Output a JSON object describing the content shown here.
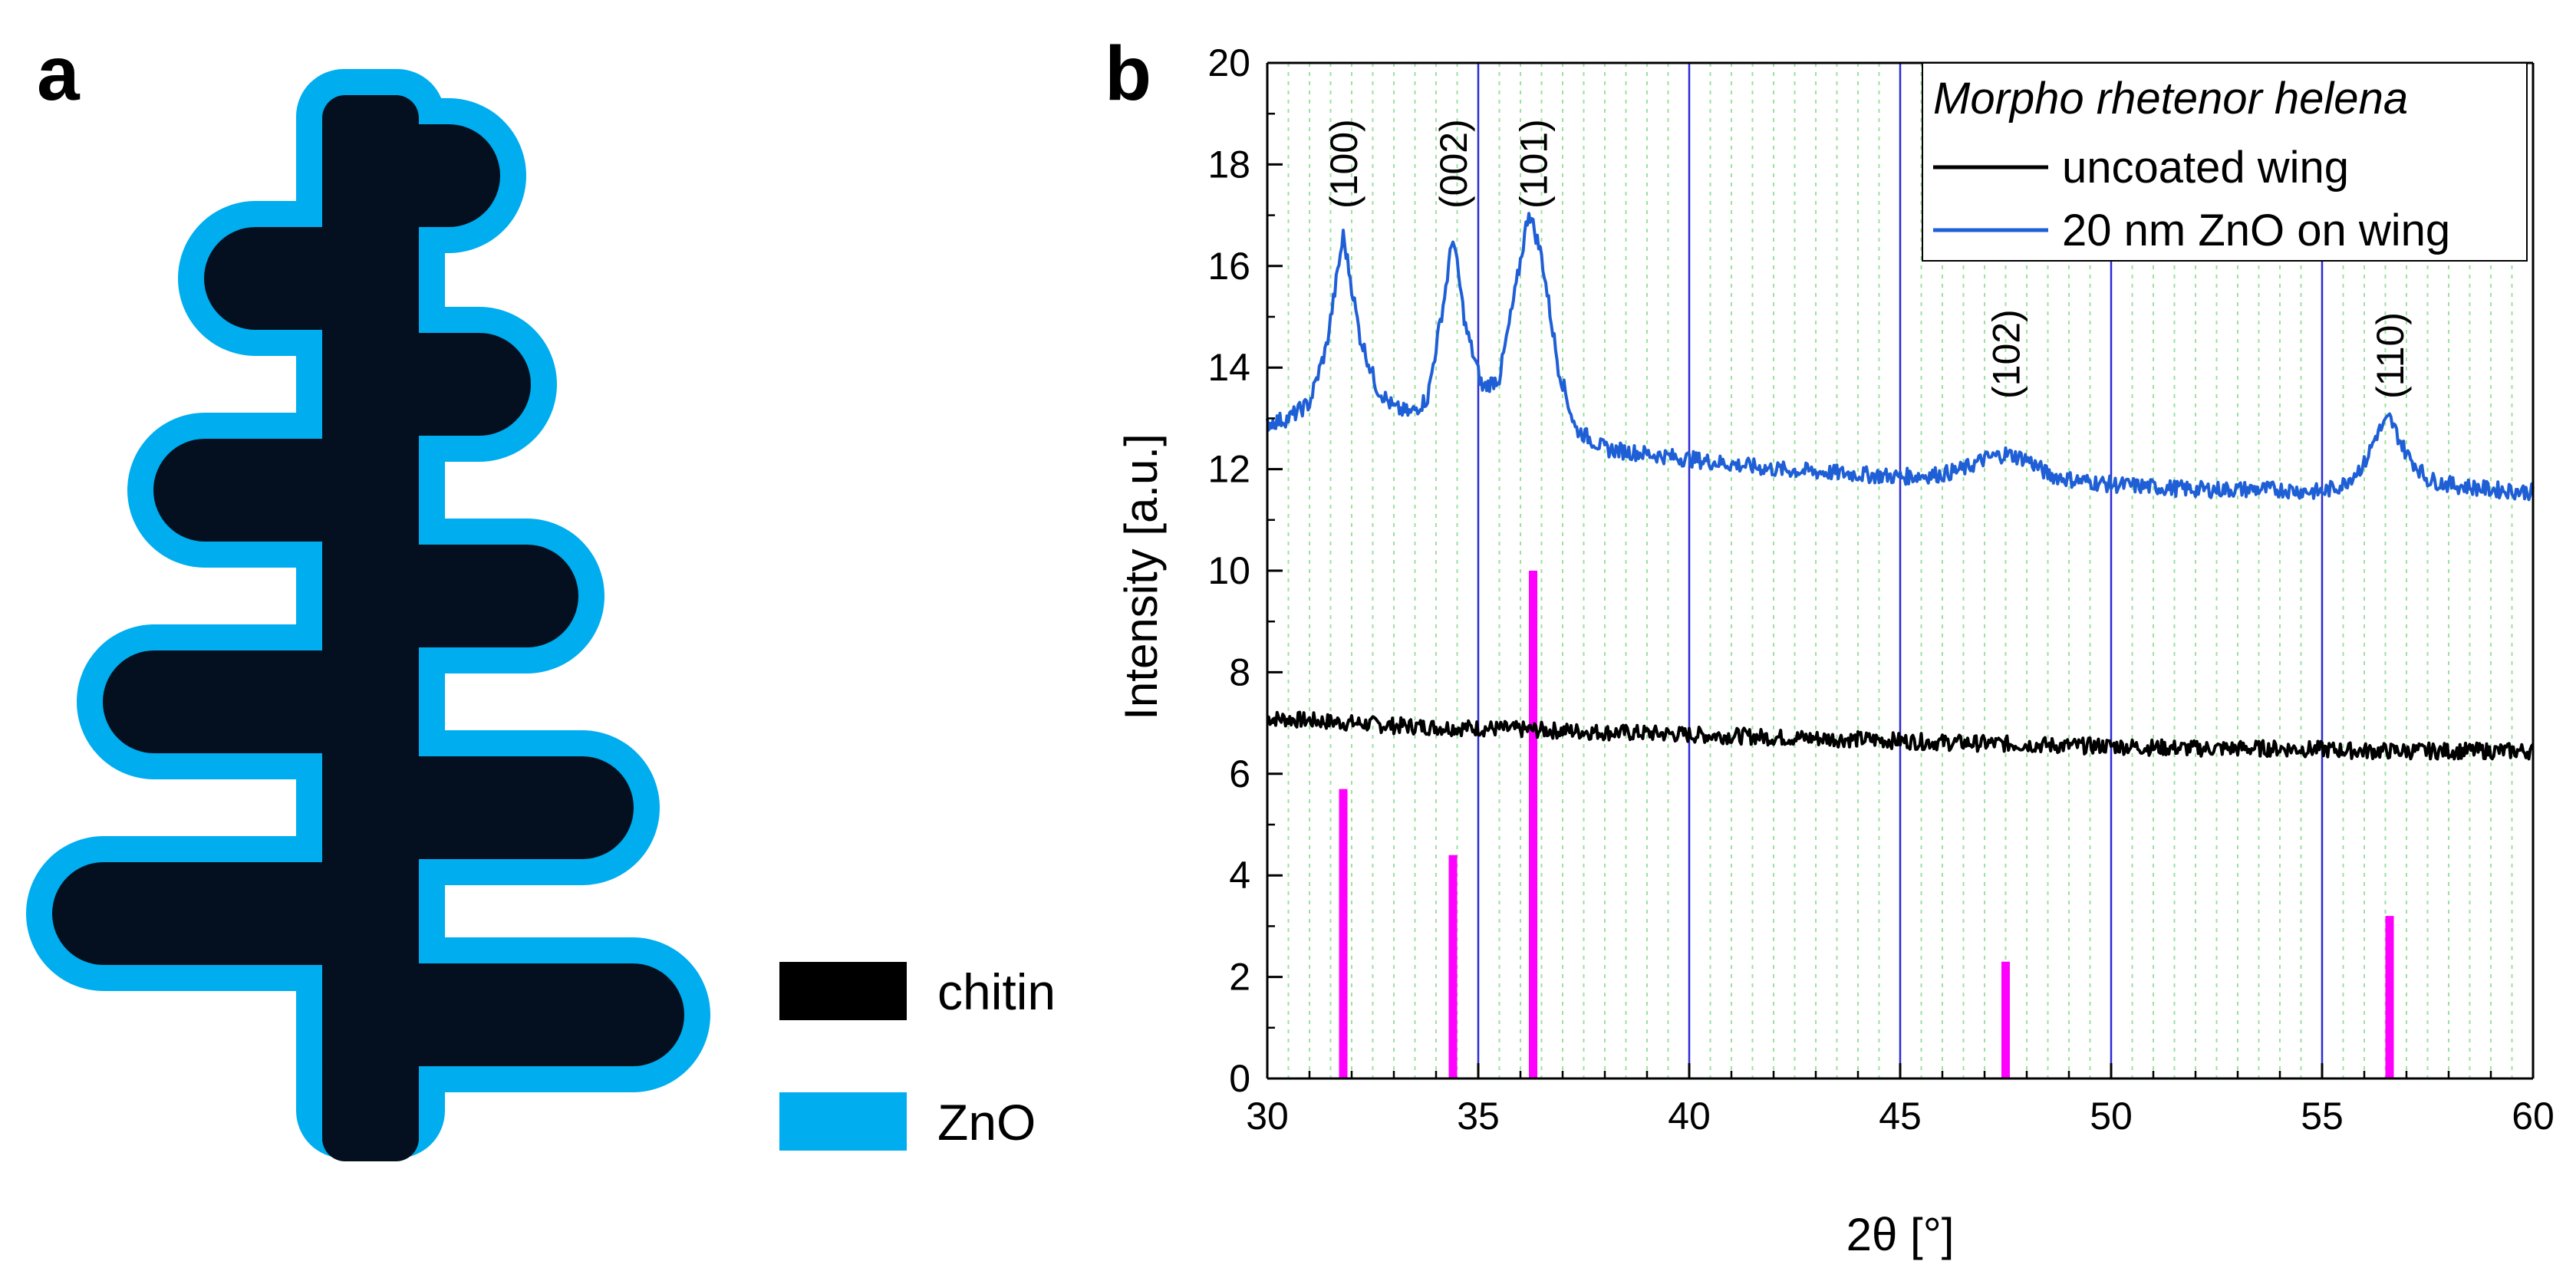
{
  "panel_a": {
    "label": "a",
    "legend": [
      {
        "label": "chitin",
        "color": "#000000"
      },
      {
        "label": "ZnO",
        "color": "#00adef"
      }
    ],
    "colors": {
      "chitin": "#04101f",
      "zno": "#00adef"
    }
  },
  "chart_data": {
    "panel_label": "b",
    "type": "line",
    "xlabel": "2θ [°]",
    "ylabel": "Intensity [a.u.]",
    "xlim": [
      30,
      60
    ],
    "ylim": [
      0,
      20
    ],
    "x_ticks": [
      30,
      35,
      40,
      45,
      50,
      55,
      60
    ],
    "y_ticks": [
      0,
      2,
      4,
      6,
      8,
      10,
      12,
      14,
      16,
      18,
      20
    ],
    "grid": {
      "major_x": true,
      "minor_x": true,
      "major_color": "#2b2bd6",
      "minor_color": "#9be29b"
    },
    "legend": {
      "title": "Morpho rhetenor helena",
      "placement": "top-right",
      "entries": [
        "uncoated wing",
        "20 nm ZnO on wing"
      ]
    },
    "series": [
      {
        "name": "uncoated wing",
        "color": "#000000",
        "x": [
          30,
          31,
          32,
          33,
          34,
          35,
          36,
          37,
          38,
          39,
          40,
          41,
          42,
          43,
          44,
          45,
          46,
          47,
          48,
          49,
          50,
          51,
          52,
          53,
          54,
          55,
          56,
          57,
          58,
          59,
          60
        ],
        "y": [
          7.1,
          7.05,
          7.0,
          6.95,
          6.92,
          6.9,
          6.87,
          6.85,
          6.82,
          6.8,
          6.77,
          6.75,
          6.72,
          6.7,
          6.68,
          6.65,
          6.62,
          6.6,
          6.58,
          6.55,
          6.55,
          6.52,
          6.5,
          6.5,
          6.5,
          6.48,
          6.45,
          6.45,
          6.45,
          6.45,
          6.45
        ]
      },
      {
        "name": "20 nm ZnO on wing",
        "color": "#1f5fd6",
        "x": [
          30,
          30.5,
          31,
          31.4,
          31.8,
          32.2,
          32.6,
          33.0,
          33.4,
          33.8,
          34.2,
          34.4,
          34.7,
          35.1,
          35.5,
          35.9,
          36.2,
          36.5,
          36.9,
          37.3,
          38,
          39,
          40,
          41,
          42,
          43,
          44,
          45,
          46,
          46.5,
          47,
          47.5,
          48,
          48.5,
          49,
          50,
          51,
          52,
          53,
          54,
          55,
          55.5,
          56,
          56.3,
          56.6,
          57,
          57.5,
          58,
          59,
          60
        ],
        "y": [
          12.9,
          13.0,
          13.3,
          14.4,
          16.6,
          14.6,
          13.6,
          13.2,
          13.1,
          13.4,
          15.4,
          16.6,
          14.8,
          13.6,
          13.8,
          15.6,
          17.1,
          16.2,
          14.0,
          12.8,
          12.4,
          12.3,
          12.2,
          12.1,
          12.0,
          11.95,
          11.9,
          11.85,
          11.9,
          12.0,
          12.2,
          12.3,
          12.2,
          11.9,
          11.8,
          11.7,
          11.65,
          11.6,
          11.6,
          11.6,
          11.55,
          11.7,
          12.1,
          12.7,
          13.0,
          12.3,
          11.8,
          11.7,
          11.6,
          11.55
        ]
      }
    ],
    "reference_peaks": {
      "color": "#ff00ff",
      "x": [
        31.8,
        34.4,
        36.3,
        47.5,
        56.6
      ],
      "y": [
        5.7,
        4.4,
        10.0,
        2.3,
        3.2
      ]
    },
    "annotations": [
      {
        "text": "(100)",
        "x": 31.8
      },
      {
        "text": "(002)",
        "x": 34.4
      },
      {
        "text": "(101)",
        "x": 36.3
      },
      {
        "text": "(102)",
        "x": 47.5
      },
      {
        "text": "(110)",
        "x": 56.6
      }
    ]
  }
}
